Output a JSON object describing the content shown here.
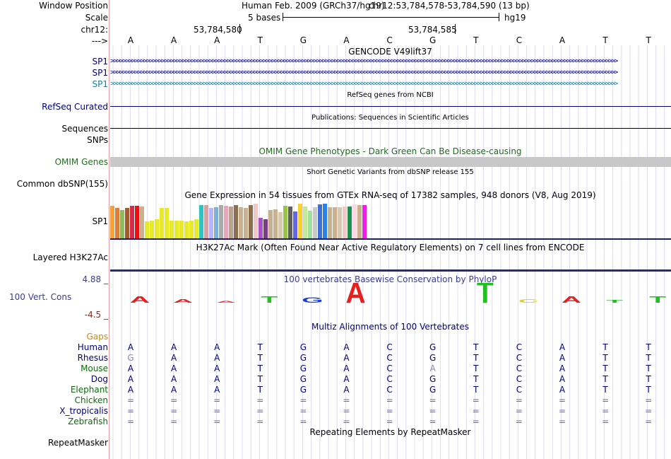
{
  "header": {
    "window_position_label": "Window Position",
    "scale_label": "Scale",
    "chr_label": "chr12:",
    "strand_label": "--->",
    "assembly": "Human Feb. 2009 (GRCh37/hg19)",
    "position": "chr12:53,784,578-53,784,590 (13 bp)",
    "scale_text": "5 bases",
    "scale_db": "hg19",
    "coord1": "53,784,580",
    "coord2": "53,784,585"
  },
  "sequence": [
    "A",
    "A",
    "A",
    "T",
    "G",
    "A",
    "C",
    "G",
    "T",
    "C",
    "A",
    "T",
    "T"
  ],
  "tracks": {
    "gencode_title": "GENCODE V49lift37",
    "gencode_items": [
      "SP1",
      "SP1",
      "SP1"
    ],
    "refseq_title": "RefSeq genes from NCBI",
    "refseq_label": "RefSeq Curated",
    "pubs_title": "Publications: Sequences in Scientific Articles",
    "pubs_label": "Sequences",
    "snps_label": "SNPs",
    "omim_title": "OMIM Gene Phenotypes - Dark Green Can Be Disease-causing",
    "omim_label": "OMIM Genes",
    "dbsnp_title": "Short Genetic Variants from dbSNP release 155",
    "dbsnp_label": "Common dbSNP(155)",
    "gtex_title": "Gene Expression in 54 tissues from GTEx RNA-seq of 17382 samples, 948 donors (V8, Aug 2019)",
    "gtex_label": "SP1",
    "h3k27ac_title": "H3K27Ac Mark (Often Found Near Active Regulatory Elements) on 7 cell lines from ENCODE",
    "h3k27ac_label": "Layered H3K27Ac",
    "phylop_title": "100 vertebrates Basewise Conservation by PhyloP",
    "phylop_label": "100 Vert. Cons",
    "phylop_max": "4.88 _",
    "phylop_min": "-4.5 _",
    "multiz_title": "Multiz Alignments of 100 Vertebrates",
    "gaps_label": "Gaps",
    "rmsk_title": "Repeating Elements by RepeatMasker",
    "rmsk_label": "RepeatMasker"
  },
  "colors": {
    "navy": "#000080",
    "teal": "#1a7fa0",
    "omim_green": "#1f6e1f",
    "phylop_blue": "#3c3c96",
    "phylop_min": "#8b2a1a",
    "gaps_orange": "#d28c00",
    "gray_band": "#c8c8c8"
  },
  "gtex_bars": [
    {
      "v": 0.92,
      "c": "#f4a13a"
    },
    {
      "v": 0.86,
      "c": "#e07b39"
    },
    {
      "v": 0.8,
      "c": "#8fbc5a"
    },
    {
      "v": 0.86,
      "c": "#a05a2c"
    },
    {
      "v": 0.92,
      "c": "#d52a4a"
    },
    {
      "v": 0.92,
      "c": "#ee1010"
    },
    {
      "v": 0.9,
      "c": "#c9b08f"
    },
    {
      "v": 0.48,
      "c": "#e9e92c"
    },
    {
      "v": 0.5,
      "c": "#e9e92c"
    },
    {
      "v": 0.54,
      "c": "#e9e92c"
    },
    {
      "v": 0.86,
      "c": "#e9e92c"
    },
    {
      "v": 0.86,
      "c": "#e9e92c"
    },
    {
      "v": 0.5,
      "c": "#e9e92c"
    },
    {
      "v": 0.5,
      "c": "#e9e92c"
    },
    {
      "v": 0.5,
      "c": "#e9e92c"
    },
    {
      "v": 0.48,
      "c": "#e9e92c"
    },
    {
      "v": 0.5,
      "c": "#e9e92c"
    },
    {
      "v": 0.54,
      "c": "#e9e92c"
    },
    {
      "v": 0.94,
      "c": "#2fc4c4"
    },
    {
      "v": 0.94,
      "c": "#d9a1a1"
    },
    {
      "v": 0.86,
      "c": "#b5b5ff"
    },
    {
      "v": 0.88,
      "c": "#7bb0d9"
    },
    {
      "v": 0.94,
      "c": "#a9a9a9"
    },
    {
      "v": 0.92,
      "c": "#e8a4bb"
    },
    {
      "v": 0.9,
      "c": "#b8a48c"
    },
    {
      "v": 0.94,
      "c": "#8b6f4e"
    },
    {
      "v": 0.88,
      "c": "#c9b08f"
    },
    {
      "v": 0.86,
      "c": "#c9b08f"
    },
    {
      "v": 0.94,
      "c": "#8b6f4e"
    },
    {
      "v": 0.98,
      "c": "#f2c7c7"
    },
    {
      "v": 0.58,
      "c": "#a952c9"
    },
    {
      "v": 0.54,
      "c": "#7a3c82"
    },
    {
      "v": 0.8,
      "c": "#c9b08f"
    },
    {
      "v": 0.82,
      "c": "#c9b08f"
    },
    {
      "v": 0.74,
      "c": "#d8c8b0"
    },
    {
      "v": 0.92,
      "c": "#9ac448"
    },
    {
      "v": 0.9,
      "c": "#606060"
    },
    {
      "v": 0.76,
      "c": "#6464e6"
    },
    {
      "v": 0.98,
      "c": "#f8d030"
    },
    {
      "v": 0.9,
      "c": "#c5e89a"
    },
    {
      "v": 0.78,
      "c": "#a0e0a0"
    },
    {
      "v": 0.88,
      "c": "#c8c8c8"
    },
    {
      "v": 0.96,
      "c": "#3c6ed8"
    },
    {
      "v": 0.98,
      "c": "#2a82e6"
    },
    {
      "v": 0.88,
      "c": "#c9b08f"
    },
    {
      "v": 0.88,
      "c": "#c9b08f"
    },
    {
      "v": 0.88,
      "c": "#d8c8b0"
    },
    {
      "v": 0.9,
      "c": "#f2c7c7"
    },
    {
      "v": 0.9,
      "c": "#1f9050"
    },
    {
      "v": 0.96,
      "c": "#ffd7e1"
    },
    {
      "v": 0.94,
      "c": "#c9b08f"
    },
    {
      "v": 0.94,
      "c": "#f020e0"
    }
  ],
  "phylop": [
    {
      "b": "A",
      "c": "#e62020",
      "h": 1.0
    },
    {
      "b": "A",
      "c": "#e62020",
      "h": 0.55
    },
    {
      "b": "A",
      "c": "#e62020",
      "h": 0.3
    },
    {
      "b": "T",
      "c": "#20c020",
      "h": 1.0
    },
    {
      "b": "G",
      "c": "#2040d0",
      "h": 0.9
    },
    {
      "b": "A",
      "c": "#e62020",
      "h": 3.2
    },
    {
      "b": "",
      "c": "",
      "h": 0
    },
    {
      "b": "",
      "c": "",
      "h": 0
    },
    {
      "b": "T",
      "c": "#20c020",
      "h": 3.4
    },
    {
      "b": "C",
      "c": "#d4d040",
      "h": 0.6
    },
    {
      "b": "A",
      "c": "#e62020",
      "h": 1.0
    },
    {
      "b": "T",
      "c": "#20c020",
      "h": 0.4
    },
    {
      "b": "T",
      "c": "#20c020",
      "h": 1.0
    }
  ],
  "species": [
    {
      "name": "Human",
      "color": "#000080",
      "seq": [
        "A",
        "A",
        "A",
        "T",
        "G",
        "A",
        "C",
        "G",
        "T",
        "C",
        "A",
        "T",
        "T"
      ]
    },
    {
      "name": "Rhesus",
      "color": "#000080",
      "seq": [
        "G",
        "A",
        "A",
        "T",
        "G",
        "A",
        "C",
        "G",
        "T",
        "C",
        "A",
        "T",
        "T"
      ]
    },
    {
      "name": "Mouse",
      "color": "#0a6e0a",
      "seq": [
        "A",
        "A",
        "A",
        "T",
        "G",
        "A",
        "C",
        "A",
        "T",
        "C",
        "A",
        "T",
        "T"
      ]
    },
    {
      "name": "Dog",
      "color": "#000080",
      "seq": [
        "A",
        "A",
        "A",
        "T",
        "G",
        "A",
        "C",
        "G",
        "T",
        "C",
        "A",
        "T",
        "T"
      ]
    },
    {
      "name": "Elephant",
      "color": "#0a6e0a",
      "seq": [
        "A",
        "A",
        "A",
        "T",
        "G",
        "A",
        "C",
        "G",
        "T",
        "C",
        "A",
        "T",
        "T"
      ]
    },
    {
      "name": "Chicken",
      "color": "#0a6e0a",
      "seq": [
        "=",
        "=",
        "=",
        "=",
        "=",
        "=",
        "=",
        "=",
        "=",
        "=",
        "=",
        "=",
        "="
      ]
    },
    {
      "name": "X_tropicalis",
      "color": "#000080",
      "seq": [
        "=",
        "=",
        "=",
        "=",
        "=",
        "=",
        "=",
        "=",
        "=",
        "=",
        "=",
        "=",
        "="
      ]
    },
    {
      "name": "Zebrafish",
      "color": "#0a6e0a",
      "seq": [
        "=",
        "=",
        "=",
        "=",
        "=",
        "=",
        "=",
        "=",
        "=",
        "=",
        "=",
        "=",
        "="
      ]
    }
  ]
}
